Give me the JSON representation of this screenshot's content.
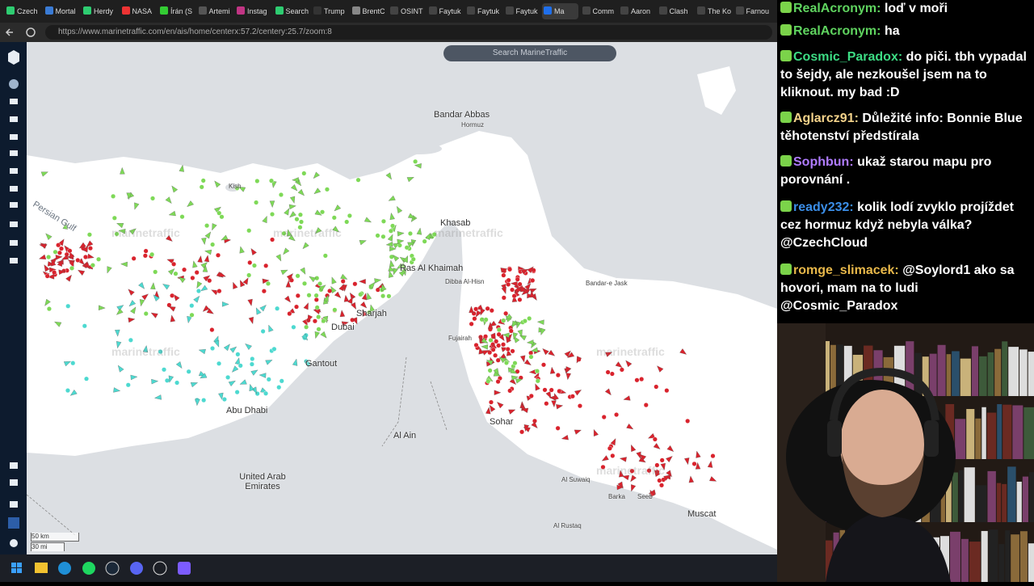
{
  "browser": {
    "tabs": [
      "Czech",
      "Mortal",
      "Herdy",
      "NASA",
      "Írán (S",
      "Artemi",
      "Instag",
      "Search",
      "Trump",
      "BrentC",
      "OSINT",
      "Faytuk",
      "Faytuk",
      "Faytuk",
      "Ma",
      "Comm",
      "Aaron",
      "Clash",
      "The Ko",
      "Farnou"
    ],
    "url": "https://www.marinetraffic.com/en/ais/home/centerx:57.2/centery:25.7/zoom:8"
  },
  "map": {
    "search_placeholder": "Search MarineTraffic",
    "watermark": "marinetraffic",
    "labels": {
      "persian_gulf": "Persian Gulf",
      "bandar_abbas": "Bandar Abbas",
      "hormuz": "Hormuz",
      "khasab": "Khasab",
      "ras_al_khaimah": "Ras Al Khaimah",
      "sharjah": "Sharjah",
      "dubai": "Dubai",
      "gantout": "Gantout",
      "abu_dhabi": "Abu Dhabi",
      "al_ain": "Al Ain",
      "sohar": "Sohar",
      "muscat": "Muscat",
      "uae": "United Arab Emirates",
      "fujairah": "Fujairah",
      "seeb": "Seeb",
      "barka": "Barka",
      "al_suwaiq": "Al Suwaiq",
      "al_rustaq": "Al Rustaq",
      "bandar_e_jask": "Bandar-e Jask",
      "kish": "Kish",
      "dibba": "Dibba Al-Hisn"
    },
    "scale": {
      "km": "50 km",
      "mi": "30 mi"
    }
  },
  "chat": [
    {
      "user": "RealAcronym:",
      "color": "#5fd35f",
      "text": "loď v moři"
    },
    {
      "user": "RealAcronym:",
      "color": "#5fd35f",
      "text": "ha"
    },
    {
      "user": "Cosmic_Paradox:",
      "color": "#3ddc84",
      "text": "do piči. tbh vypadal to šejdy, ale nezkoušel jsem na to kliknout. my bad :D"
    },
    {
      "user": "Aglarcz91:",
      "color": "#f3d28a",
      "text": "Důležité info: Bonnie Blue těhotenství předstírala"
    },
    {
      "user": "Sophbun:",
      "color": "#b07cff",
      "text": "ukaž starou mapu pro porovnání ."
    },
    {
      "user": "ready232:",
      "color": "#3b8ee8",
      "text": "kolik lodí zvyklo projíždet cez hormuz když nebyla válka? @CzechCloud"
    },
    {
      "user": "romge_slimacek:",
      "color": "#e8b84a",
      "text": "@Soylord1 ako sa hovori, mam na to ludi @Cosmic_Paradox"
    }
  ]
}
